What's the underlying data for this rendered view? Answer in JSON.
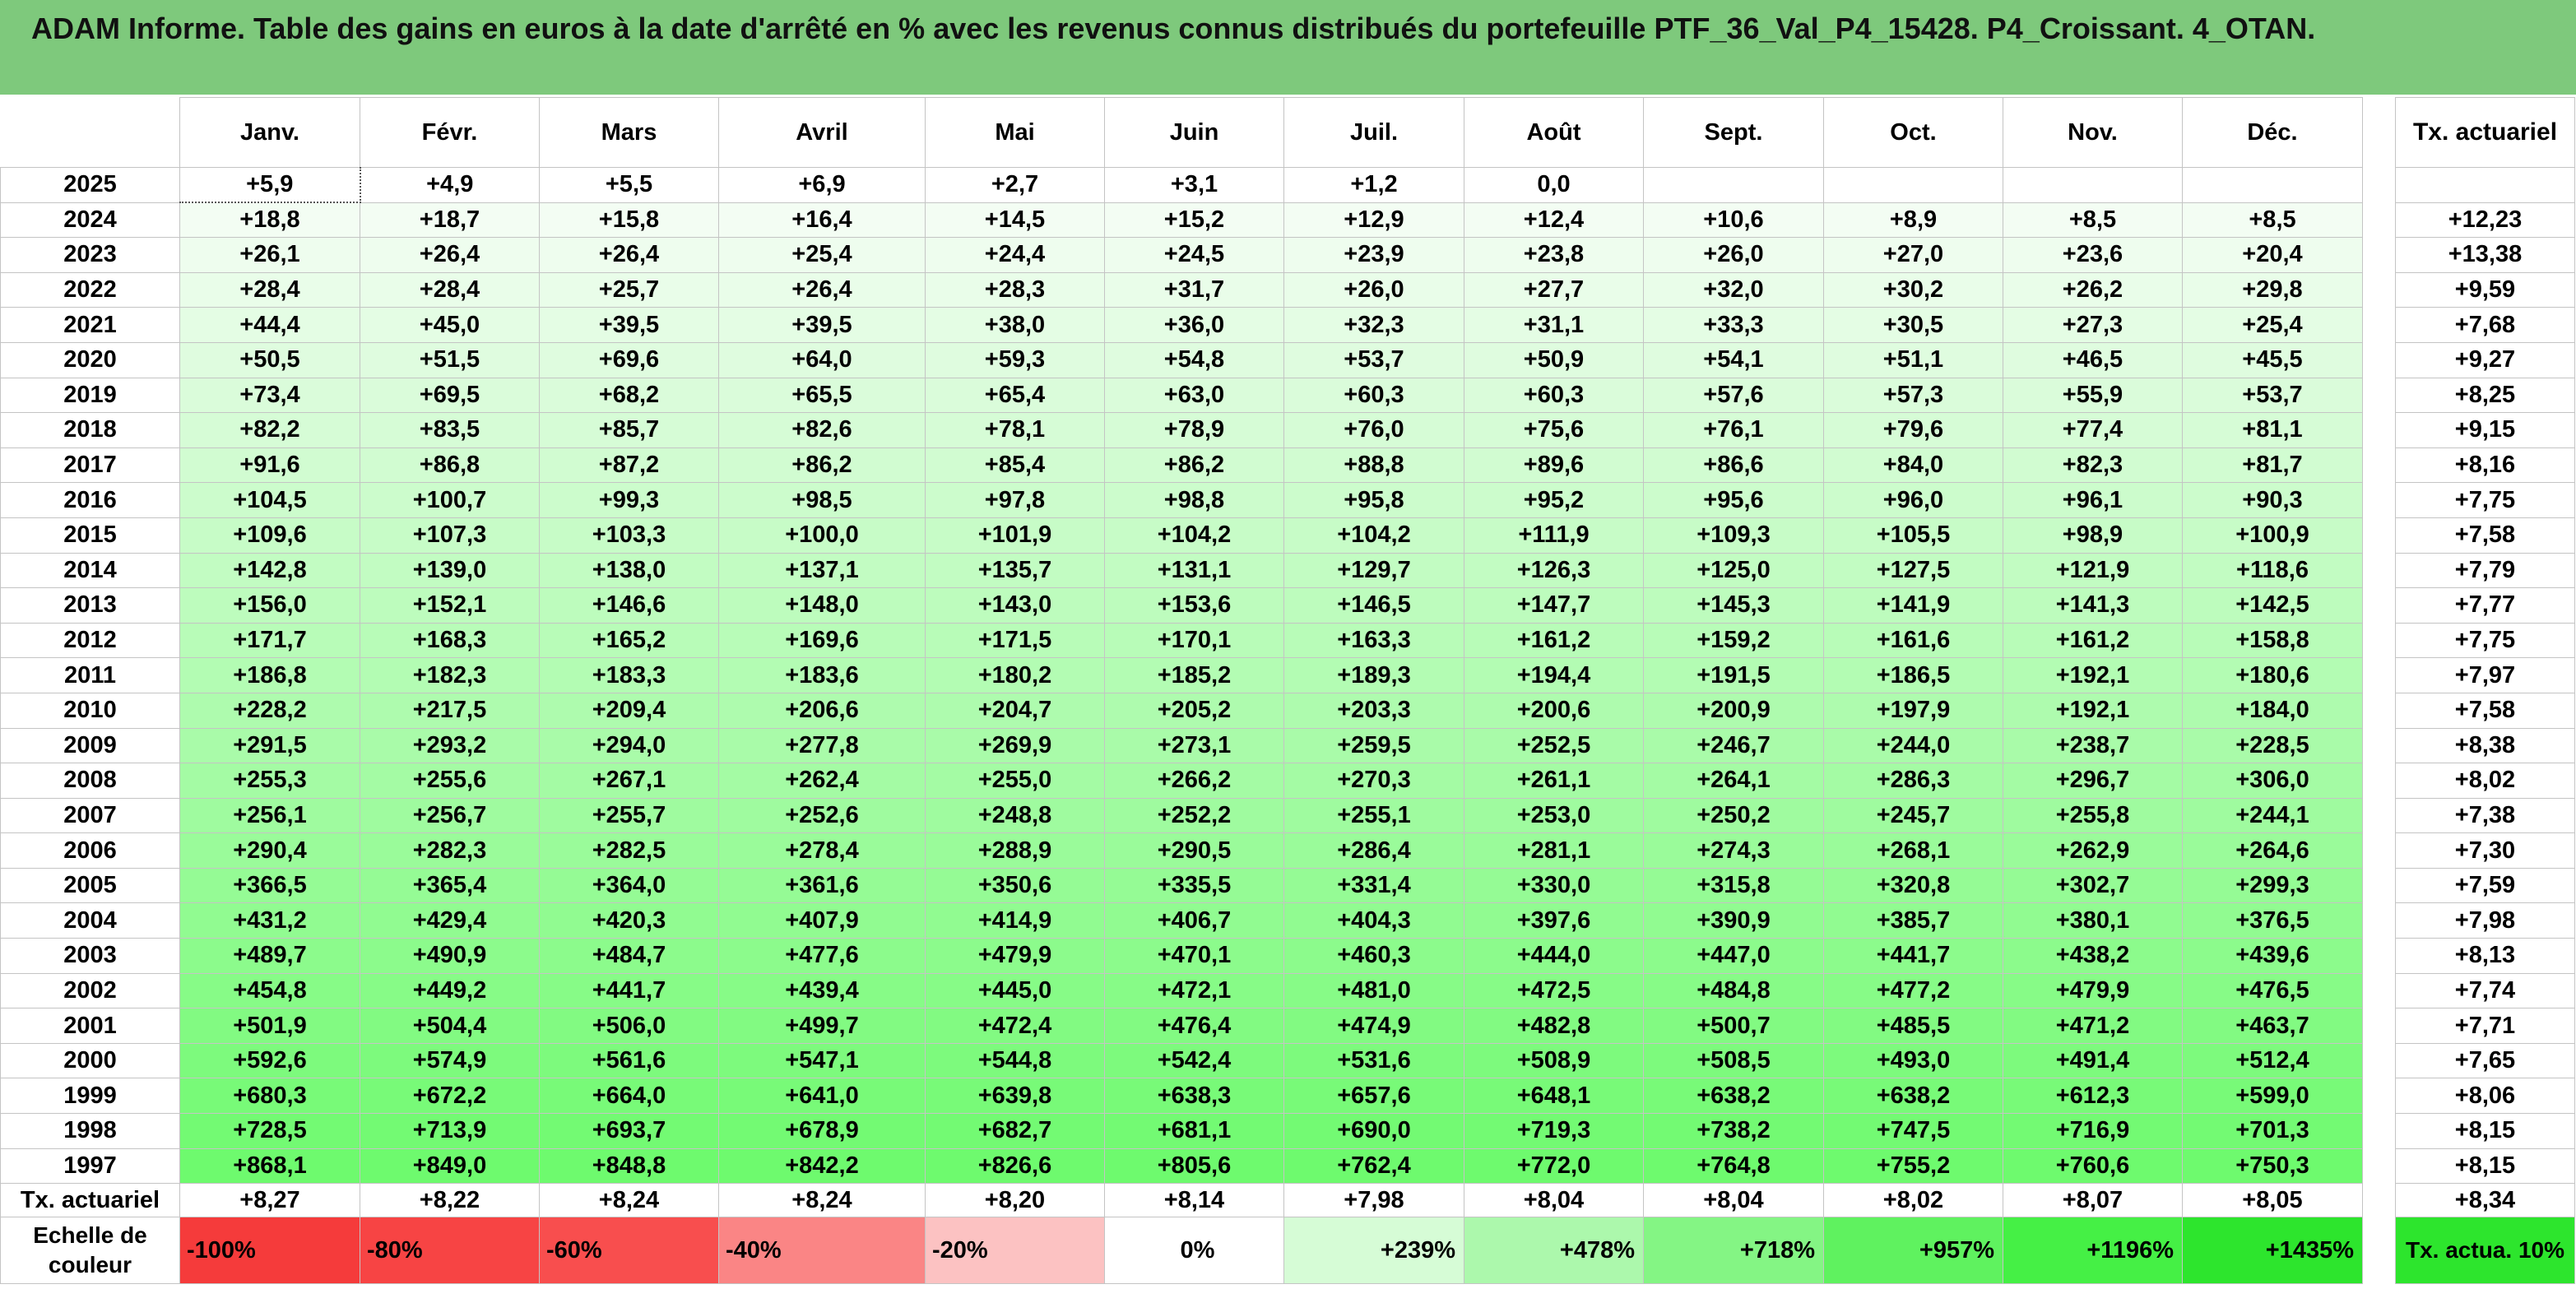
{
  "title": "ADAM Informe. Table des gains en euros à la date d'arrêté en % avec les revenus connus distribués du portefeuille PTF_36_Val_P4_15428. P4_Croissant. 4_OTAN.",
  "months": [
    "Janv.",
    "Févr.",
    "Mars",
    "Avril",
    "Mai",
    "Juin",
    "Juil.",
    "Août",
    "Sept.",
    "Oct.",
    "Nov.",
    "Déc."
  ],
  "tx_header": "Tx. actuariel",
  "colors": {
    "title_bg": "#7ec97c",
    "max_green": "#3ef53e",
    "actua_bg": "#2de52d"
  },
  "rows": [
    {
      "year": "2025",
      "values": [
        "+5,9",
        "+4,9",
        "+5,5",
        "+6,9",
        "+2,7",
        "+3,1",
        "+1,2",
        "0,0",
        "",
        "",
        "",
        ""
      ],
      "tx": ""
    },
    {
      "year": "2024",
      "values": [
        "+18,8",
        "+18,7",
        "+15,8",
        "+16,4",
        "+14,5",
        "+15,2",
        "+12,9",
        "+12,4",
        "+10,6",
        "+8,9",
        "+8,5",
        "+8,5"
      ],
      "tx": "+12,23"
    },
    {
      "year": "2023",
      "values": [
        "+26,1",
        "+26,4",
        "+26,4",
        "+25,4",
        "+24,4",
        "+24,5",
        "+23,9",
        "+23,8",
        "+26,0",
        "+27,0",
        "+23,6",
        "+20,4"
      ],
      "tx": "+13,38"
    },
    {
      "year": "2022",
      "values": [
        "+28,4",
        "+28,4",
        "+25,7",
        "+26,4",
        "+28,3",
        "+31,7",
        "+26,0",
        "+27,7",
        "+32,0",
        "+30,2",
        "+26,2",
        "+29,8"
      ],
      "tx": "+9,59"
    },
    {
      "year": "2021",
      "values": [
        "+44,4",
        "+45,0",
        "+39,5",
        "+39,5",
        "+38,0",
        "+36,0",
        "+32,3",
        "+31,1",
        "+33,3",
        "+30,5",
        "+27,3",
        "+25,4"
      ],
      "tx": "+7,68"
    },
    {
      "year": "2020",
      "values": [
        "+50,5",
        "+51,5",
        "+69,6",
        "+64,0",
        "+59,3",
        "+54,8",
        "+53,7",
        "+50,9",
        "+54,1",
        "+51,1",
        "+46,5",
        "+45,5"
      ],
      "tx": "+9,27"
    },
    {
      "year": "2019",
      "values": [
        "+73,4",
        "+69,5",
        "+68,2",
        "+65,5",
        "+65,4",
        "+63,0",
        "+60,3",
        "+60,3",
        "+57,6",
        "+57,3",
        "+55,9",
        "+53,7"
      ],
      "tx": "+8,25"
    },
    {
      "year": "2018",
      "values": [
        "+82,2",
        "+83,5",
        "+85,7",
        "+82,6",
        "+78,1",
        "+78,9",
        "+76,0",
        "+75,6",
        "+76,1",
        "+79,6",
        "+77,4",
        "+81,1"
      ],
      "tx": "+9,15"
    },
    {
      "year": "2017",
      "values": [
        "+91,6",
        "+86,8",
        "+87,2",
        "+86,2",
        "+85,4",
        "+86,2",
        "+88,8",
        "+89,6",
        "+86,6",
        "+84,0",
        "+82,3",
        "+81,7"
      ],
      "tx": "+8,16"
    },
    {
      "year": "2016",
      "values": [
        "+104,5",
        "+100,7",
        "+99,3",
        "+98,5",
        "+97,8",
        "+98,8",
        "+95,8",
        "+95,2",
        "+95,6",
        "+96,0",
        "+96,1",
        "+90,3"
      ],
      "tx": "+7,75"
    },
    {
      "year": "2015",
      "values": [
        "+109,6",
        "+107,3",
        "+103,3",
        "+100,0",
        "+101,9",
        "+104,2",
        "+104,2",
        "+111,9",
        "+109,3",
        "+105,5",
        "+98,9",
        "+100,9"
      ],
      "tx": "+7,58"
    },
    {
      "year": "2014",
      "values": [
        "+142,8",
        "+139,0",
        "+138,0",
        "+137,1",
        "+135,7",
        "+131,1",
        "+129,7",
        "+126,3",
        "+125,0",
        "+127,5",
        "+121,9",
        "+118,6"
      ],
      "tx": "+7,79"
    },
    {
      "year": "2013",
      "values": [
        "+156,0",
        "+152,1",
        "+146,6",
        "+148,0",
        "+143,0",
        "+153,6",
        "+146,5",
        "+147,7",
        "+145,3",
        "+141,9",
        "+141,3",
        "+142,5"
      ],
      "tx": "+7,77"
    },
    {
      "year": "2012",
      "values": [
        "+171,7",
        "+168,3",
        "+165,2",
        "+169,6",
        "+171,5",
        "+170,1",
        "+163,3",
        "+161,2",
        "+159,2",
        "+161,6",
        "+161,2",
        "+158,8"
      ],
      "tx": "+7,75"
    },
    {
      "year": "2011",
      "values": [
        "+186,8",
        "+182,3",
        "+183,3",
        "+183,6",
        "+180,2",
        "+185,2",
        "+189,3",
        "+194,4",
        "+191,5",
        "+186,5",
        "+192,1",
        "+180,6"
      ],
      "tx": "+7,97"
    },
    {
      "year": "2010",
      "values": [
        "+228,2",
        "+217,5",
        "+209,4",
        "+206,6",
        "+204,7",
        "+205,2",
        "+203,3",
        "+200,6",
        "+200,9",
        "+197,9",
        "+192,1",
        "+184,0"
      ],
      "tx": "+7,58"
    },
    {
      "year": "2009",
      "values": [
        "+291,5",
        "+293,2",
        "+294,0",
        "+277,8",
        "+269,9",
        "+273,1",
        "+259,5",
        "+252,5",
        "+246,7",
        "+244,0",
        "+238,7",
        "+228,5"
      ],
      "tx": "+8,38"
    },
    {
      "year": "2008",
      "values": [
        "+255,3",
        "+255,6",
        "+267,1",
        "+262,4",
        "+255,0",
        "+266,2",
        "+270,3",
        "+261,1",
        "+264,1",
        "+286,3",
        "+296,7",
        "+306,0"
      ],
      "tx": "+8,02"
    },
    {
      "year": "2007",
      "values": [
        "+256,1",
        "+256,7",
        "+255,7",
        "+252,6",
        "+248,8",
        "+252,2",
        "+255,1",
        "+253,0",
        "+250,2",
        "+245,7",
        "+255,8",
        "+244,1"
      ],
      "tx": "+7,38"
    },
    {
      "year": "2006",
      "values": [
        "+290,4",
        "+282,3",
        "+282,5",
        "+278,4",
        "+288,9",
        "+290,5",
        "+286,4",
        "+281,1",
        "+274,3",
        "+268,1",
        "+262,9",
        "+264,6"
      ],
      "tx": "+7,30"
    },
    {
      "year": "2005",
      "values": [
        "+366,5",
        "+365,4",
        "+364,0",
        "+361,6",
        "+350,6",
        "+335,5",
        "+331,4",
        "+330,0",
        "+315,8",
        "+320,8",
        "+302,7",
        "+299,3"
      ],
      "tx": "+7,59"
    },
    {
      "year": "2004",
      "values": [
        "+431,2",
        "+429,4",
        "+420,3",
        "+407,9",
        "+414,9",
        "+406,7",
        "+404,3",
        "+397,6",
        "+390,9",
        "+385,7",
        "+380,1",
        "+376,5"
      ],
      "tx": "+7,98"
    },
    {
      "year": "2003",
      "values": [
        "+489,7",
        "+490,9",
        "+484,7",
        "+477,6",
        "+479,9",
        "+470,1",
        "+460,3",
        "+444,0",
        "+447,0",
        "+441,7",
        "+438,2",
        "+439,6"
      ],
      "tx": "+8,13"
    },
    {
      "year": "2002",
      "values": [
        "+454,8",
        "+449,2",
        "+441,7",
        "+439,4",
        "+445,0",
        "+472,1",
        "+481,0",
        "+472,5",
        "+484,8",
        "+477,2",
        "+479,9",
        "+476,5"
      ],
      "tx": "+7,74"
    },
    {
      "year": "2001",
      "values": [
        "+501,9",
        "+504,4",
        "+506,0",
        "+499,7",
        "+472,4",
        "+476,4",
        "+474,9",
        "+482,8",
        "+500,7",
        "+485,5",
        "+471,2",
        "+463,7"
      ],
      "tx": "+7,71"
    },
    {
      "year": "2000",
      "values": [
        "+592,6",
        "+574,9",
        "+561,6",
        "+547,1",
        "+544,8",
        "+542,4",
        "+531,6",
        "+508,9",
        "+508,5",
        "+493,0",
        "+491,4",
        "+512,4"
      ],
      "tx": "+7,65"
    },
    {
      "year": "1999",
      "values": [
        "+680,3",
        "+672,2",
        "+664,0",
        "+641,0",
        "+639,8",
        "+638,3",
        "+657,6",
        "+648,1",
        "+638,2",
        "+638,2",
        "+612,3",
        "+599,0"
      ],
      "tx": "+8,06"
    },
    {
      "year": "1998",
      "values": [
        "+728,5",
        "+713,9",
        "+693,7",
        "+678,9",
        "+682,7",
        "+681,1",
        "+690,0",
        "+719,3",
        "+738,2",
        "+747,5",
        "+716,9",
        "+701,3"
      ],
      "tx": "+8,15"
    },
    {
      "year": "1997",
      "values": [
        "+868,1",
        "+849,0",
        "+848,8",
        "+842,2",
        "+826,6",
        "+805,6",
        "+762,4",
        "+772,0",
        "+764,8",
        "+755,2",
        "+760,6",
        "+750,3"
      ],
      "tx": "+8,15"
    }
  ],
  "tx_row": {
    "label": "Tx. actuariel",
    "values": [
      "+8,27",
      "+8,22",
      "+8,24",
      "+8,24",
      "+8,20",
      "+8,14",
      "+7,98",
      "+8,04",
      "+8,04",
      "+8,02",
      "+8,07",
      "+8,05"
    ],
    "overall": "+8,34"
  },
  "scale": {
    "label": "Echelle de couleur",
    "items": [
      {
        "text": "-100%",
        "color": "#f53b3b"
      },
      {
        "text": "-80%",
        "color": "#f74444"
      },
      {
        "text": "-60%",
        "color": "#f84e4e"
      },
      {
        "text": "-40%",
        "color": "#fa8585"
      },
      {
        "text": "-20%",
        "color": "#fcc2c2"
      },
      {
        "text": "0%",
        "color": "#ffffff"
      },
      {
        "text": "+239%",
        "color": "#d6fcd6"
      },
      {
        "text": "+478%",
        "color": "#acf8ac"
      },
      {
        "text": "+718%",
        "color": "#84f584"
      },
      {
        "text": "+957%",
        "color": "#5ff25f"
      },
      {
        "text": "+1196%",
        "color": "#45f045"
      },
      {
        "text": "+1435%",
        "color": "#2de52d"
      }
    ],
    "actua_label": "Tx. actua. 10%"
  }
}
